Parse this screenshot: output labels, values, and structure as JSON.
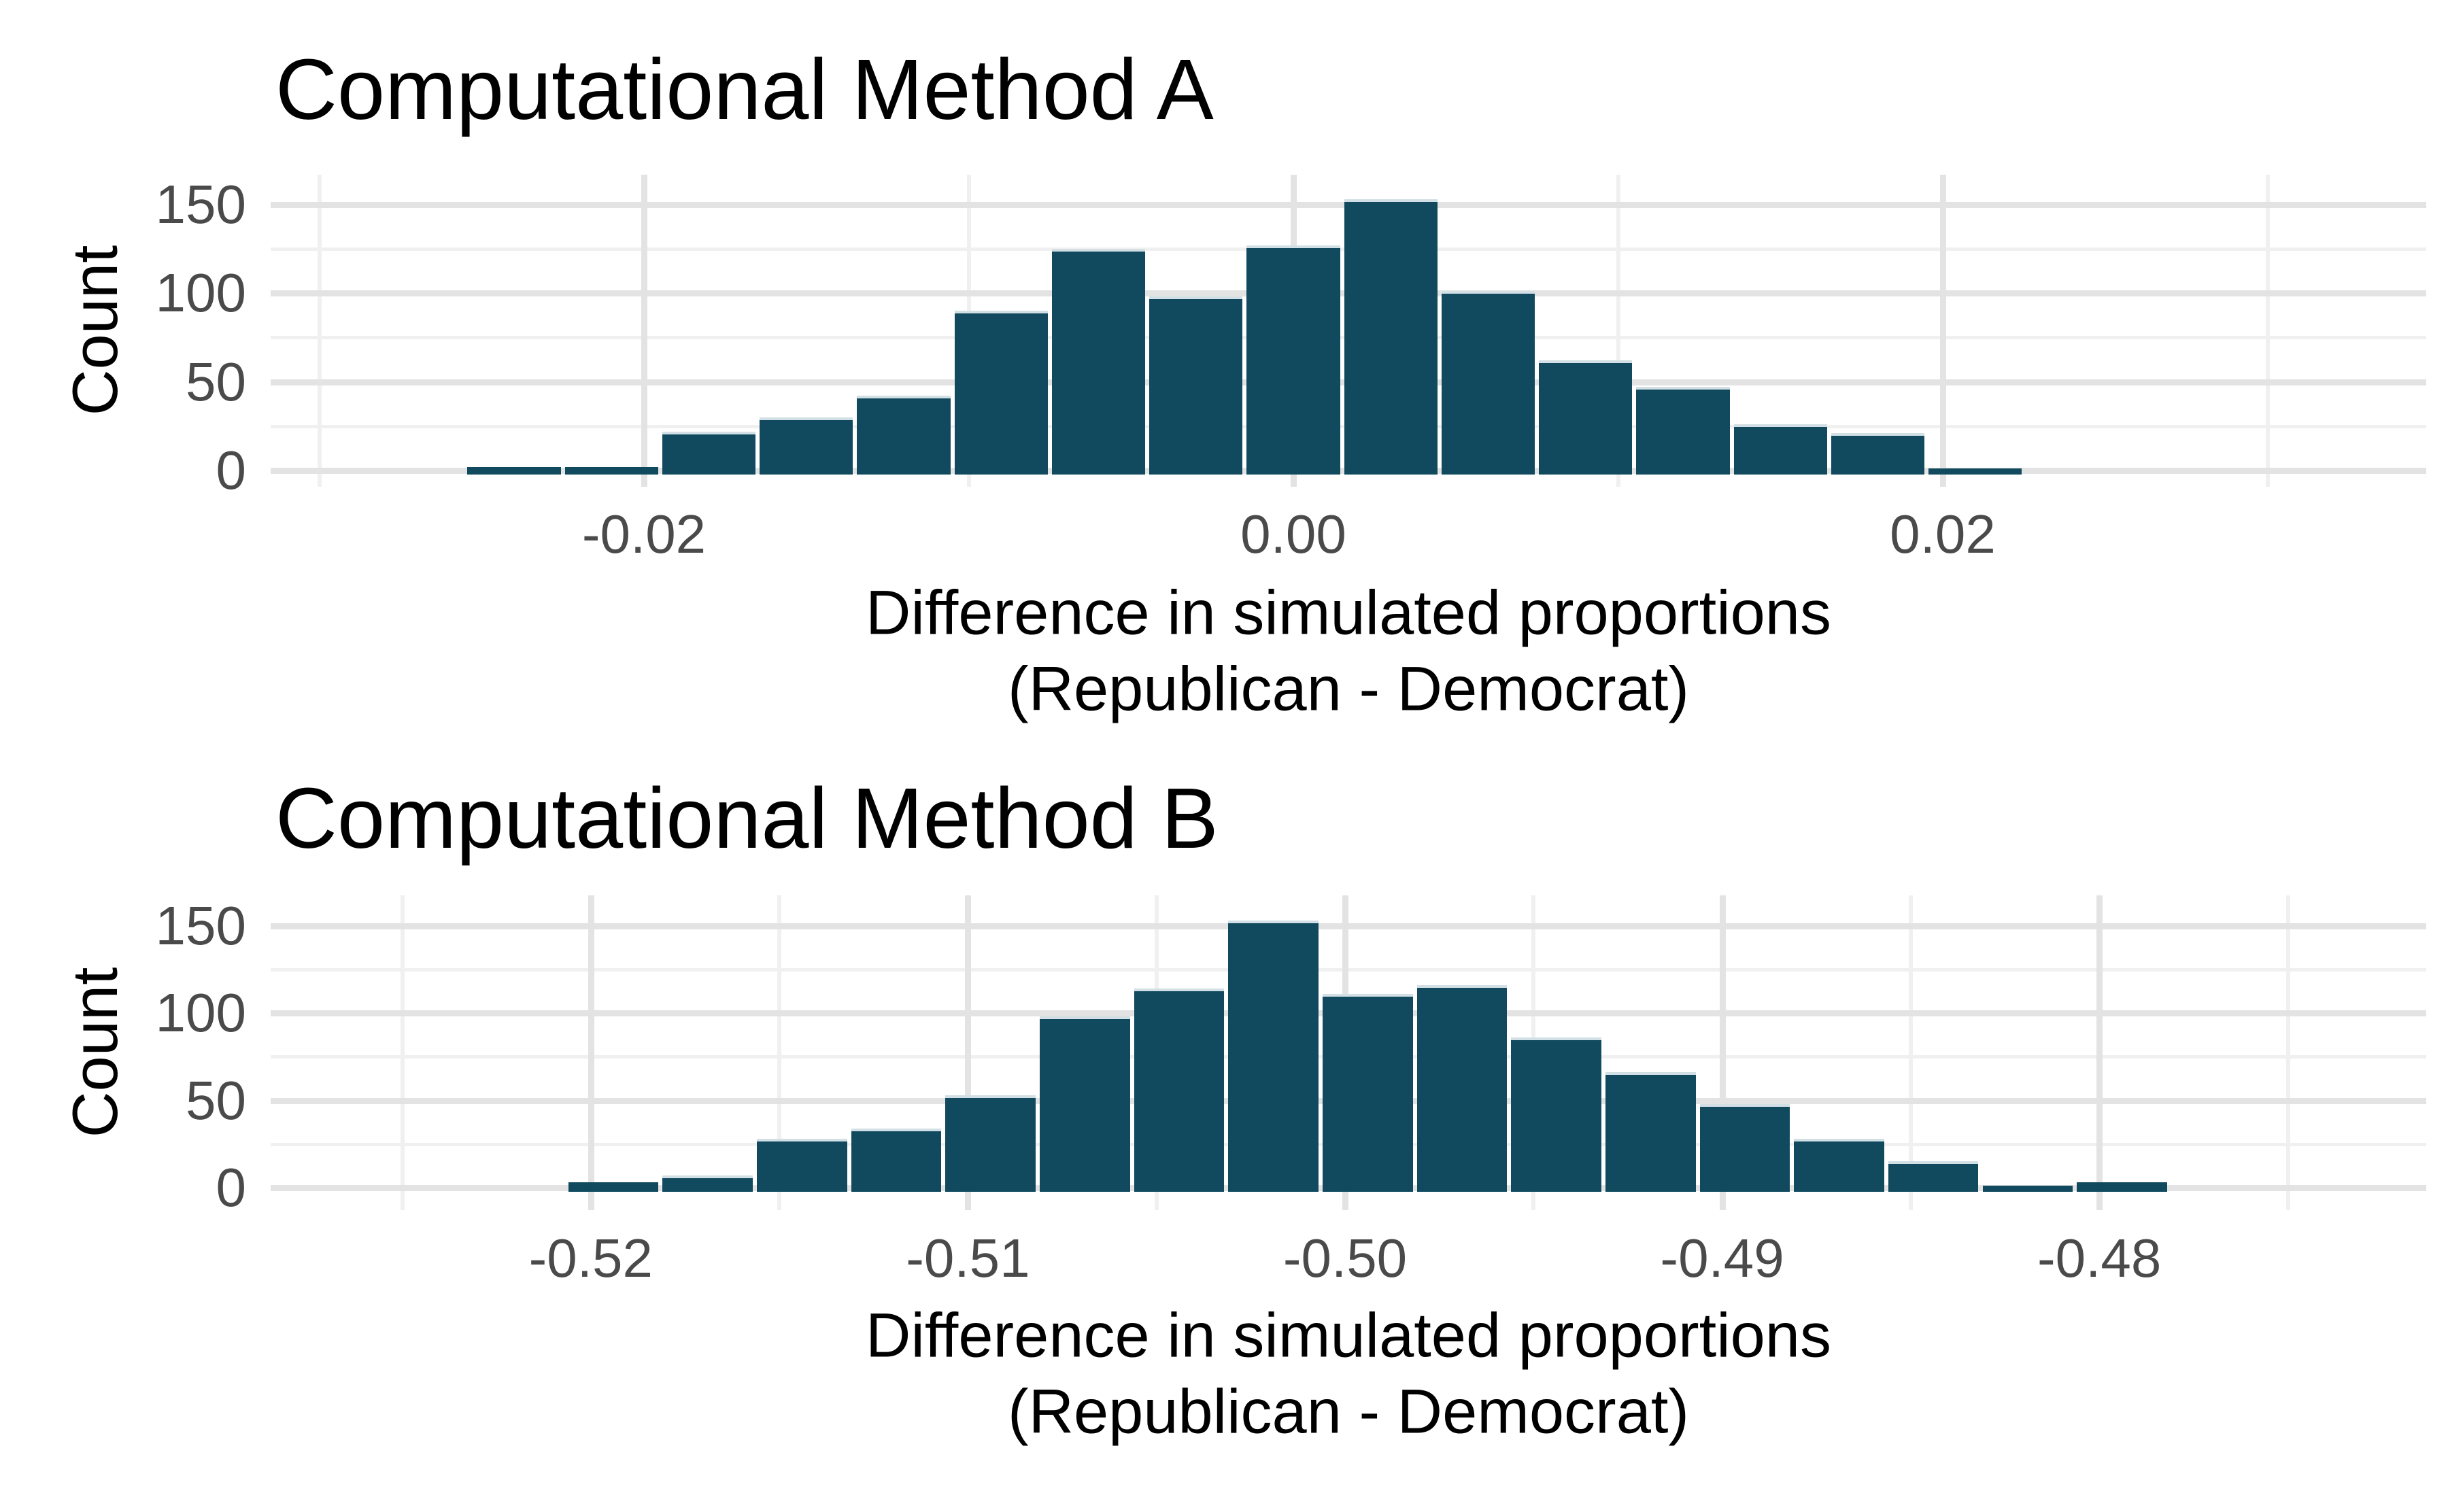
{
  "page": {
    "background": "#ffffff"
  },
  "colors": {
    "bar_fill": "#114a5e",
    "bar_edge": "#d2dfe5",
    "grid_major": "#e3e3e3",
    "grid_minor": "#f0f0f0",
    "tick_text": "#4a4a4a",
    "label_text": "#000000"
  },
  "chart_data": [
    {
      "type": "bar",
      "subtype": "histogram",
      "title": "Computational Method A",
      "ylabel": "Count",
      "xlabel_lines": [
        "Difference in simulated proportions",
        "(Republican - Democrat)"
      ],
      "bin_width": 0.003,
      "bin_centers": [
        -0.024,
        -0.021,
        -0.018,
        -0.015,
        -0.012,
        -0.009,
        -0.006,
        -0.003,
        0.0,
        0.003,
        0.006,
        0.009,
        0.012,
        0.015,
        0.018,
        0.021
      ],
      "counts": [
        2,
        2,
        22,
        30,
        42,
        90,
        125,
        98,
        127,
        153,
        101,
        62,
        47,
        26,
        21,
        1
      ],
      "xlim": [
        -0.0315,
        0.0349
      ],
      "ylim": [
        0,
        168
      ],
      "grid": true,
      "legend": "none",
      "x_ticks": [
        {
          "value": -0.02,
          "label": "-0.02"
        },
        {
          "value": 0.0,
          "label": "0.00"
        },
        {
          "value": 0.02,
          "label": "0.02"
        }
      ],
      "x_minor": [
        -0.03,
        -0.01,
        0.01,
        0.03
      ],
      "y_ticks": [
        {
          "value": 0,
          "label": "0"
        },
        {
          "value": 50,
          "label": "50"
        },
        {
          "value": 100,
          "label": "100"
        },
        {
          "value": 150,
          "label": "150"
        }
      ],
      "y_minor": [
        25,
        75,
        125
      ]
    },
    {
      "type": "bar",
      "subtype": "histogram",
      "title": "Computational Method B",
      "ylabel": "Count",
      "xlabel_lines": [
        "Difference in simulated proportions",
        "(Republican - Democrat)"
      ],
      "bin_width": 0.0025,
      "bin_centers": [
        -0.5194,
        -0.5169,
        -0.5144,
        -0.5119,
        -0.5094,
        -0.5069,
        -0.5044,
        -0.5019,
        -0.4994,
        -0.4969,
        -0.4944,
        -0.4919,
        -0.4894,
        -0.4869,
        -0.4844,
        -0.4819,
        -0.4794
      ],
      "counts": [
        3,
        7,
        28,
        34,
        53,
        98,
        114,
        153,
        111,
        116,
        86,
        66,
        48,
        28,
        15,
        1,
        3
      ],
      "xlim": [
        -0.5285,
        -0.4713
      ],
      "ylim": [
        0,
        167
      ],
      "grid": true,
      "legend": "none",
      "x_ticks": [
        {
          "value": -0.52,
          "label": "-0.52"
        },
        {
          "value": -0.51,
          "label": "-0.51"
        },
        {
          "value": -0.5,
          "label": "-0.50"
        },
        {
          "value": -0.49,
          "label": "-0.49"
        },
        {
          "value": -0.48,
          "label": "-0.48"
        }
      ],
      "x_minor": [
        -0.525,
        -0.515,
        -0.505,
        -0.495,
        -0.485,
        -0.475
      ],
      "y_ticks": [
        {
          "value": 0,
          "label": "0"
        },
        {
          "value": 50,
          "label": "50"
        },
        {
          "value": 100,
          "label": "100"
        },
        {
          "value": 150,
          "label": "150"
        }
      ],
      "y_minor": [
        25,
        75,
        125
      ]
    }
  ]
}
